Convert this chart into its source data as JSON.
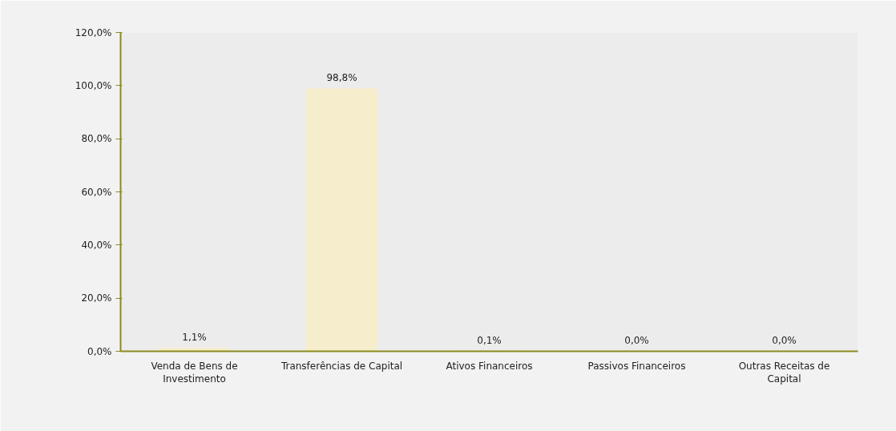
{
  "chart_data": {
    "type": "bar",
    "categories": [
      "Venda de Bens de Investimento",
      "Transferências de Capital",
      "Ativos Financeiros",
      "Passivos Financeiros",
      "Outras Receitas de Capital"
    ],
    "values": [
      1.1,
      98.8,
      0.1,
      0.0,
      0.0
    ],
    "value_labels": [
      "1,1%",
      "98,8%",
      "0,1%",
      "0,0%",
      "0,0%"
    ],
    "color": "#f6edcc",
    "ylim": [
      0,
      120
    ],
    "yticks": [
      {
        "value": 0,
        "label": "0,0%"
      },
      {
        "value": 20,
        "label": "20,0%"
      },
      {
        "value": 40,
        "label": "40,0%"
      },
      {
        "value": 60,
        "label": "60,0%"
      },
      {
        "value": 80,
        "label": "80,0%"
      },
      {
        "value": 100,
        "label": "100,0%"
      },
      {
        "value": 120,
        "label": "120,0%"
      }
    ],
    "grid": false
  }
}
